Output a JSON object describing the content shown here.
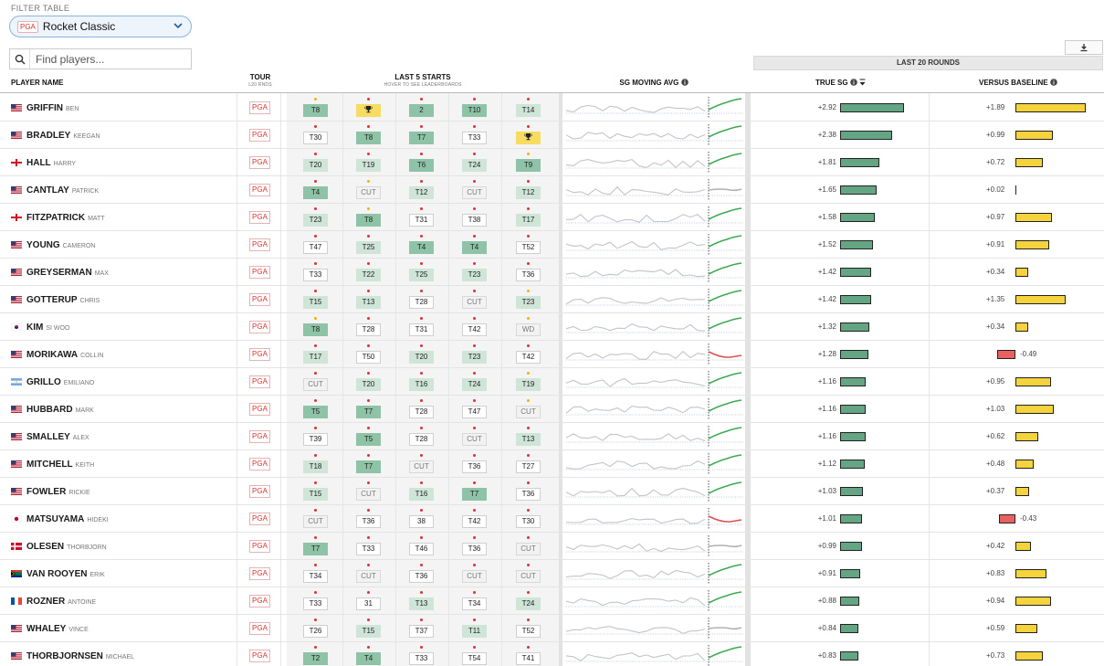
{
  "filter": {
    "label": "FILTER TABLE",
    "tour_badge": "PGA",
    "selected": "Rocket Classic"
  },
  "search": {
    "placeholder": "Find players..."
  },
  "group_header": "LAST 20 ROUNDS",
  "headers": {
    "player": "PLAYER NAME",
    "tour": "TOUR",
    "tour_sub": "L20 RNDS",
    "starts": "LAST 5 STARTS",
    "starts_sub": "HOVER TO SEE LEADERBOARDS",
    "sg_avg": "SG MOVING AVG",
    "true_sg": "TRUE SG",
    "baseline": "VERSUS BASELINE"
  },
  "colors": {
    "sg_bar": "#64a584",
    "baseline_pos": "#f5d33c",
    "baseline_neg": "#e86060",
    "spark_up": "#3caa50",
    "spark_down": "#e05050",
    "tour_badge": "#d33333"
  },
  "players": [
    {
      "last": "GRIFFIN",
      "first": "BEN",
      "flag": "usa",
      "tour": "PGA",
      "starts": [
        "T8",
        "🏆",
        "2",
        "T10",
        "T14"
      ],
      "dots": [
        "y",
        "r",
        "r",
        "r",
        "r"
      ],
      "true_sg": "+2.92",
      "sg": 2.92,
      "baseline": "+1.89",
      "bl": 1.89,
      "trend": "up"
    },
    {
      "last": "BRADLEY",
      "first": "KEEGAN",
      "flag": "usa",
      "tour": "PGA",
      "starts": [
        "T30",
        "T8",
        "T7",
        "T33",
        "🏆"
      ],
      "dots": [
        "r",
        "r",
        "r",
        "r",
        "r"
      ],
      "true_sg": "+2.38",
      "sg": 2.38,
      "baseline": "+0.99",
      "bl": 0.99,
      "trend": "up"
    },
    {
      "last": "HALL",
      "first": "HARRY",
      "flag": "eng",
      "tour": "PGA",
      "starts": [
        "T20",
        "T19",
        "T6",
        "T24",
        "T9"
      ],
      "dots": [
        "r",
        "r",
        "r",
        "r",
        "y"
      ],
      "true_sg": "+1.81",
      "sg": 1.81,
      "baseline": "+0.72",
      "bl": 0.72,
      "trend": "up"
    },
    {
      "last": "CANTLAY",
      "first": "PATRICK",
      "flag": "usa",
      "tour": "PGA",
      "starts": [
        "T4",
        "CUT",
        "T12",
        "CUT",
        "T12"
      ],
      "dots": [
        "r",
        "y",
        "r",
        "r",
        "r"
      ],
      "true_sg": "+1.65",
      "sg": 1.65,
      "baseline": "+0.02",
      "bl": 0.02,
      "trend": "flat"
    },
    {
      "last": "FITZPATRICK",
      "first": "MATT",
      "flag": "eng",
      "tour": "PGA",
      "starts": [
        "T23",
        "T8",
        "T31",
        "T38",
        "T17"
      ],
      "dots": [
        "r",
        "y",
        "r",
        "r",
        "r"
      ],
      "true_sg": "+1.58",
      "sg": 1.58,
      "baseline": "+0.97",
      "bl": 0.97,
      "trend": "up"
    },
    {
      "last": "YOUNG",
      "first": "CAMERON",
      "flag": "usa",
      "tour": "PGA",
      "starts": [
        "T47",
        "T25",
        "T4",
        "T4",
        "T52"
      ],
      "dots": [
        "r",
        "r",
        "r",
        "r",
        "r"
      ],
      "true_sg": "+1.52",
      "sg": 1.52,
      "baseline": "+0.91",
      "bl": 0.91,
      "trend": "up"
    },
    {
      "last": "GREYSERMAN",
      "first": "MAX",
      "flag": "usa",
      "tour": "PGA",
      "starts": [
        "T33",
        "T22",
        "T25",
        "T23",
        "T36"
      ],
      "dots": [
        "r",
        "r",
        "r",
        "r",
        "r"
      ],
      "true_sg": "+1.42",
      "sg": 1.42,
      "baseline": "+0.34",
      "bl": 0.34,
      "trend": "up"
    },
    {
      "last": "GOTTERUP",
      "first": "CHRIS",
      "flag": "usa",
      "tour": "PGA",
      "starts": [
        "T15",
        "T13",
        "T28",
        "CUT",
        "T23"
      ],
      "dots": [
        "r",
        "r",
        "r",
        "r",
        "y"
      ],
      "true_sg": "+1.42",
      "sg": 1.42,
      "baseline": "+1.35",
      "bl": 1.35,
      "trend": "up"
    },
    {
      "last": "KIM",
      "first": "SI WOO",
      "flag": "kor",
      "tour": "PGA",
      "starts": [
        "T8",
        "T28",
        "T31",
        "T42",
        "WD"
      ],
      "dots": [
        "y",
        "r",
        "r",
        "r",
        "y"
      ],
      "true_sg": "+1.32",
      "sg": 1.32,
      "baseline": "+0.34",
      "bl": 0.34,
      "trend": "up"
    },
    {
      "last": "MORIKAWA",
      "first": "COLLIN",
      "flag": "usa",
      "tour": "PGA",
      "starts": [
        "T17",
        "T50",
        "T20",
        "T23",
        "T42"
      ],
      "dots": [
        "r",
        "r",
        "r",
        "r",
        "r"
      ],
      "true_sg": "+1.28",
      "sg": 1.28,
      "baseline": "-0.49",
      "bl": -0.49,
      "trend": "down"
    },
    {
      "last": "GRILLO",
      "first": "EMILIANO",
      "flag": "arg",
      "tour": "PGA",
      "starts": [
        "CUT",
        "T20",
        "T16",
        "T24",
        "T19"
      ],
      "dots": [
        "r",
        "r",
        "r",
        "r",
        "y"
      ],
      "true_sg": "+1.16",
      "sg": 1.16,
      "baseline": "+0.95",
      "bl": 0.95,
      "trend": "up"
    },
    {
      "last": "HUBBARD",
      "first": "MARK",
      "flag": "usa",
      "tour": "PGA",
      "starts": [
        "T5",
        "T7",
        "T28",
        "T47",
        "CUT"
      ],
      "dots": [
        "r",
        "r",
        "r",
        "r",
        "y"
      ],
      "true_sg": "+1.16",
      "sg": 1.16,
      "baseline": "+1.03",
      "bl": 1.03,
      "trend": "up"
    },
    {
      "last": "SMALLEY",
      "first": "ALEX",
      "flag": "usa",
      "tour": "PGA",
      "starts": [
        "T39",
        "T5",
        "T28",
        "CUT",
        "T13"
      ],
      "dots": [
        "r",
        "r",
        "r",
        "r",
        "r"
      ],
      "true_sg": "+1.16",
      "sg": 1.16,
      "baseline": "+0.62",
      "bl": 0.62,
      "trend": "up"
    },
    {
      "last": "MITCHELL",
      "first": "KEITH",
      "flag": "usa",
      "tour": "PGA",
      "starts": [
        "T18",
        "T7",
        "CUT",
        "T36",
        "T27"
      ],
      "dots": [
        "r",
        "r",
        "r",
        "r",
        "r"
      ],
      "true_sg": "+1.12",
      "sg": 1.12,
      "baseline": "+0.48",
      "bl": 0.48,
      "trend": "up"
    },
    {
      "last": "FOWLER",
      "first": "RICKIE",
      "flag": "usa",
      "tour": "PGA",
      "starts": [
        "T15",
        "CUT",
        "T16",
        "T7",
        "T36"
      ],
      "dots": [
        "r",
        "r",
        "r",
        "r",
        "r"
      ],
      "true_sg": "+1.03",
      "sg": 1.03,
      "baseline": "+0.37",
      "bl": 0.37,
      "trend": "up"
    },
    {
      "last": "MATSUYAMA",
      "first": "HIDEKI",
      "flag": "jpn",
      "tour": "PGA",
      "starts": [
        "CUT",
        "T36",
        "38",
        "T42",
        "T30"
      ],
      "dots": [
        "r",
        "r",
        "r",
        "r",
        "r"
      ],
      "true_sg": "+1.01",
      "sg": 1.01,
      "baseline": "-0.43",
      "bl": -0.43,
      "trend": "down"
    },
    {
      "last": "OLESEN",
      "first": "THORBJORN",
      "flag": "den",
      "tour": "PGA",
      "starts": [
        "T7",
        "T33",
        "T46",
        "T36",
        "CUT"
      ],
      "dots": [
        "r",
        "r",
        "r",
        "r",
        "r"
      ],
      "true_sg": "+0.99",
      "sg": 0.99,
      "baseline": "+0.42",
      "bl": 0.42,
      "trend": "flat"
    },
    {
      "last": "VAN ROOYEN",
      "first": "ERIK",
      "flag": "rsa",
      "tour": "PGA",
      "starts": [
        "T34",
        "CUT",
        "T36",
        "CUT",
        "CUT"
      ],
      "dots": [
        "r",
        "r",
        "r",
        "r",
        "r"
      ],
      "true_sg": "+0.91",
      "sg": 0.91,
      "baseline": "+0.83",
      "bl": 0.83,
      "trend": "up"
    },
    {
      "last": "ROZNER",
      "first": "ANTOINE",
      "flag": "fra",
      "tour": "PGA",
      "starts": [
        "T33",
        "31",
        "T13",
        "T34",
        "T24"
      ],
      "dots": [
        "r",
        "r",
        "r",
        "r",
        "r"
      ],
      "true_sg": "+0.88",
      "sg": 0.88,
      "baseline": "+0.94",
      "bl": 0.94,
      "trend": "up"
    },
    {
      "last": "WHALEY",
      "first": "VINCE",
      "flag": "usa",
      "tour": "PGA",
      "starts": [
        "T26",
        "T15",
        "T37",
        "T11",
        "T52"
      ],
      "dots": [
        "r",
        "r",
        "r",
        "r",
        "r"
      ],
      "true_sg": "+0.84",
      "sg": 0.84,
      "baseline": "+0.59",
      "bl": 0.59,
      "trend": "flat"
    },
    {
      "last": "THORBJORNSEN",
      "first": "MICHAEL",
      "flag": "usa",
      "tour": "PGA",
      "starts": [
        "T2",
        "T4",
        "T33",
        "T54",
        "T41"
      ],
      "dots": [
        "r",
        "r",
        "r",
        "r",
        "r"
      ],
      "true_sg": "+0.83",
      "sg": 0.83,
      "baseline": "+0.73",
      "bl": 0.73,
      "trend": "up"
    }
  ]
}
